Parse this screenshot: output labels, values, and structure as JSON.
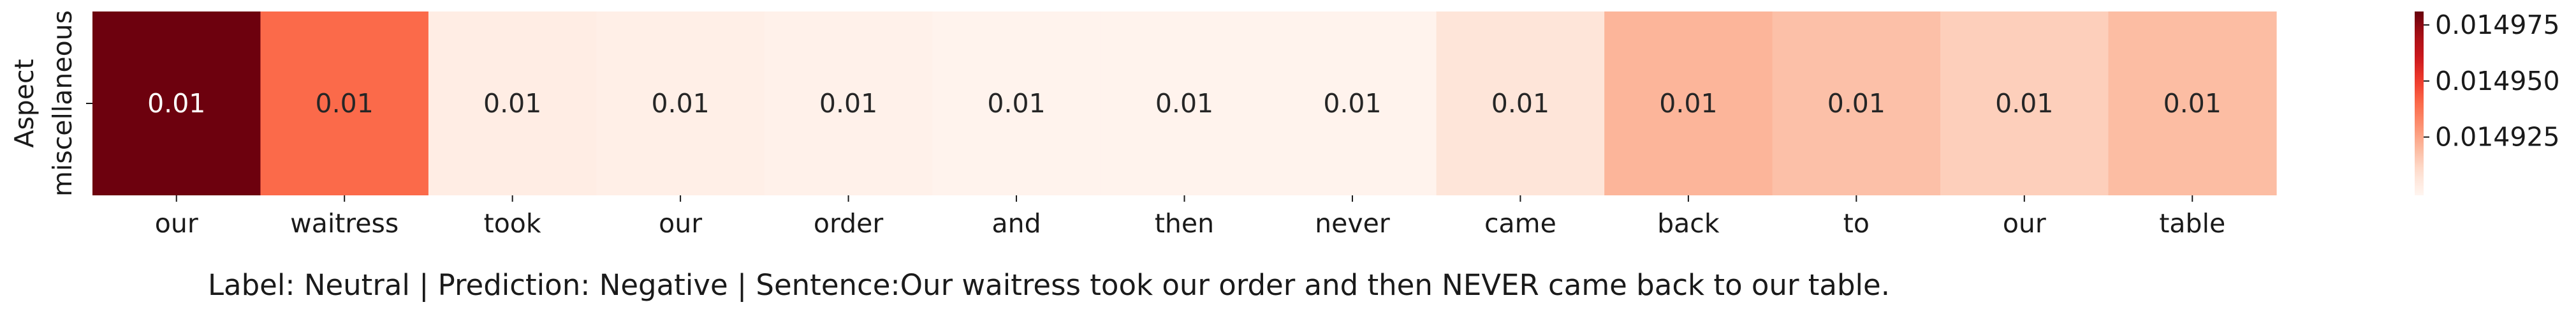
{
  "chart_data": {
    "type": "heatmap",
    "y_label": "Aspect",
    "rows": [
      "miscellaneous"
    ],
    "columns": [
      "our",
      "waitress",
      "took",
      "our",
      "order",
      "and",
      "then",
      "never",
      "came",
      "back",
      "to",
      "our",
      "table"
    ],
    "values": [
      [
        0.01498,
        0.01494,
        0.014903,
        0.014902,
        0.014901,
        0.0149,
        0.0149,
        0.0149,
        0.014907,
        0.014921,
        0.014918,
        0.014914,
        0.014919
      ]
    ],
    "cell_labels": [
      [
        "0.01",
        "0.01",
        "0.01",
        "0.01",
        "0.01",
        "0.01",
        "0.01",
        "0.01",
        "0.01",
        "0.01",
        "0.01",
        "0.01",
        "0.01"
      ]
    ],
    "colormap": "Reds",
    "colorbar": {
      "vmin": 0.014899,
      "vmax": 0.014981,
      "ticks": [
        0.014925,
        0.01495,
        0.014975
      ],
      "tick_labels": [
        "0.014925",
        "0.014950",
        "0.014975"
      ]
    }
  },
  "caption": "Label: Neutral | Prediction: Negative | Sentence:Our waitress took our order and then NEVER came back to our table.",
  "colors": {
    "reds_scale": [
      "#fff5f0",
      "#fee0d2",
      "#fcbba1",
      "#fc9272",
      "#fb6a4a",
      "#ef3b2c",
      "#cb181d",
      "#a50f15",
      "#67000d"
    ]
  }
}
